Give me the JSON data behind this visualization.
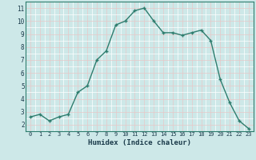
{
  "x": [
    0,
    1,
    2,
    3,
    4,
    5,
    6,
    7,
    8,
    9,
    10,
    11,
    12,
    13,
    14,
    15,
    16,
    17,
    18,
    19,
    20,
    21,
    22,
    23
  ],
  "y": [
    2.6,
    2.8,
    2.3,
    2.6,
    2.8,
    4.5,
    5.0,
    7.0,
    7.7,
    9.7,
    10.0,
    10.8,
    11.0,
    10.0,
    9.1,
    9.1,
    8.9,
    9.1,
    9.3,
    8.5,
    5.5,
    3.7,
    2.3,
    1.7
  ],
  "line_color": "#2e7d6e",
  "marker": "+",
  "marker_size": 3,
  "line_width": 1.0,
  "bg_color": "#cde8e8",
  "xlabel": "Humidex (Indice chaleur)",
  "xlabel_fontsize": 6.5,
  "xlabel_color": "#1a3a4a",
  "ytick_min": 2,
  "ytick_max": 11,
  "xtick_labels": [
    "0",
    "1",
    "2",
    "3",
    "4",
    "5",
    "6",
    "7",
    "8",
    "9",
    "10",
    "11",
    "12",
    "13",
    "14",
    "15",
    "16",
    "17",
    "18",
    "19",
    "20",
    "21",
    "22",
    "23"
  ],
  "grid_minor_color": "#ffffff",
  "grid_major_color": "#e8c8c8",
  "spine_color": "#2e7d6e"
}
